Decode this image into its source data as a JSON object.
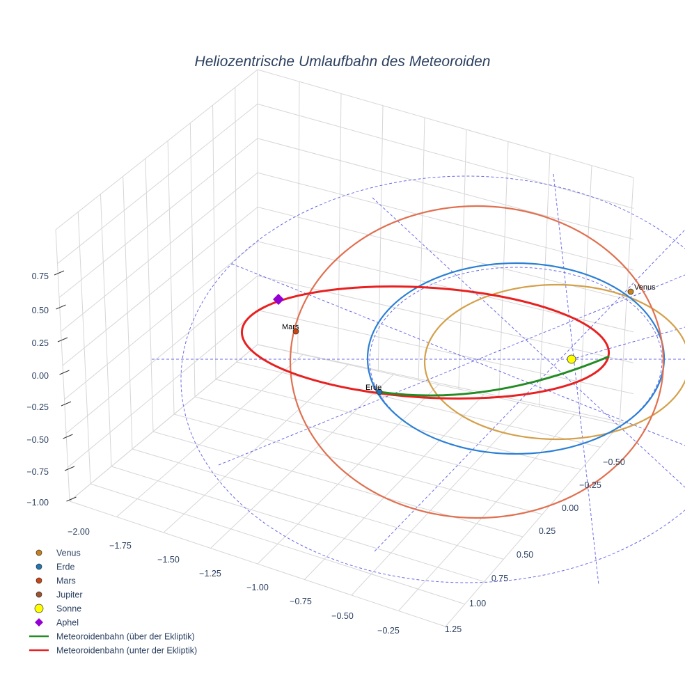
{
  "chart_data": {
    "type": "scatter3d",
    "title": "Heliozentrische Umlaufbahn des Meteoroiden",
    "x_ticks": [
      "−2.00",
      "−1.75",
      "−1.50",
      "−1.25",
      "−1.00",
      "−0.75",
      "−0.50",
      "−0.25"
    ],
    "y_ticks": [
      "−0.50",
      "−0.25",
      "0.00",
      "0.25",
      "0.50",
      "0.75",
      "1.00",
      "1.25"
    ],
    "z_ticks": [
      "0.75",
      "0.50",
      "0.25",
      "0.00",
      "−0.25",
      "−0.50",
      "−0.75",
      "−1.00"
    ],
    "points": [
      {
        "name": "Venus",
        "label": "Venus",
        "color": "#c9811a"
      },
      {
        "name": "Erde",
        "label": "Erde",
        "color": "#1f77b4"
      },
      {
        "name": "Mars",
        "label": "Mars",
        "color": "#cc4411"
      },
      {
        "name": "Jupiter",
        "color": "#a0522d"
      },
      {
        "name": "Sonne",
        "color": "#ffff00"
      },
      {
        "name": "Aphel",
        "color": "#9400d3"
      }
    ],
    "orbits": [
      {
        "name": "Venus orbit",
        "color": "#d4a04a"
      },
      {
        "name": "Erde orbit",
        "color": "#2a7fd4"
      },
      {
        "name": "Mars orbit",
        "color": "#e07050"
      },
      {
        "name": "Ekliptik grid",
        "color": "#6a6ae8"
      }
    ],
    "legend": [
      {
        "label": "Venus",
        "symbol": "circle",
        "color": "#c9811a"
      },
      {
        "label": "Erde",
        "symbol": "circle",
        "color": "#1f77b4"
      },
      {
        "label": "Mars",
        "symbol": "circle",
        "color": "#cc4411"
      },
      {
        "label": "Jupiter",
        "symbol": "circle",
        "color": "#a0522d"
      },
      {
        "label": "Sonne",
        "symbol": "circle-large",
        "color": "#ffff00"
      },
      {
        "label": "Aphel",
        "symbol": "diamond",
        "color": "#9400d3"
      },
      {
        "label": "Meteoroidenbahn (über der Ekliptik)",
        "symbol": "line",
        "color": "#228b22"
      },
      {
        "label": "Meteoroidenbahn (unter der Ekliptik)",
        "symbol": "line",
        "color": "#e82020"
      }
    ],
    "legend_position": "bottom-left"
  }
}
